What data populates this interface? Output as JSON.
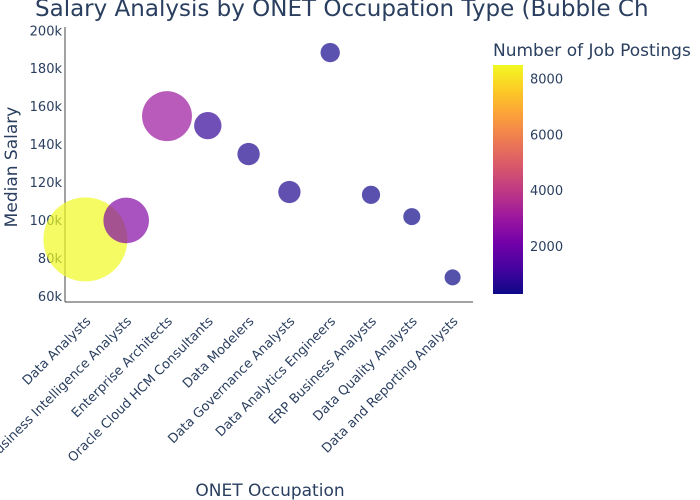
{
  "chart_data": {
    "type": "scatter",
    "title": "Salary Analysis by ONET Occupation Type (Bubble Ch",
    "xlabel": "ONET Occupation",
    "ylabel": "Median Salary",
    "categories": [
      "Data Analysts",
      "Business Intelligence Analysts",
      "Enterprise Architects",
      "Oracle Cloud HCM Consultants",
      "Data Modelers",
      "Data Governance Analysts",
      "Data Analytics Engineers",
      "ERP Business Analysts",
      "Data Quality Analysts",
      "Data and Reporting Analysts"
    ],
    "series": [
      {
        "median_salary": [
          90000,
          100000,
          155000,
          150000,
          135000,
          115000,
          188500,
          113500,
          102000,
          70000
        ],
        "job_postings": [
          8500,
          2500,
          3000,
          900,
          600,
          600,
          450,
          400,
          350,
          300
        ]
      }
    ],
    "ylim": [
      57000,
      202000
    ],
    "yticks": [
      60000,
      80000,
      100000,
      120000,
      140000,
      160000,
      180000,
      200000
    ],
    "ytick_labels": [
      "60k",
      "80k",
      "100k",
      "120k",
      "140k",
      "160k",
      "180k",
      "200k"
    ],
    "colorbar": {
      "title": "Number of Job Postings",
      "range": [
        300,
        8500
      ],
      "ticks": [
        2000,
        4000,
        6000,
        8000
      ],
      "tick_labels": [
        "2000",
        "4000",
        "6000",
        "8000"
      ],
      "colorscale": [
        "#0d0887",
        "#46039f",
        "#7201a8",
        "#9c179e",
        "#bd3786",
        "#d8576b",
        "#ed7953",
        "#fb9f3a",
        "#fdca26",
        "#f0f921"
      ]
    },
    "grid": false
  }
}
